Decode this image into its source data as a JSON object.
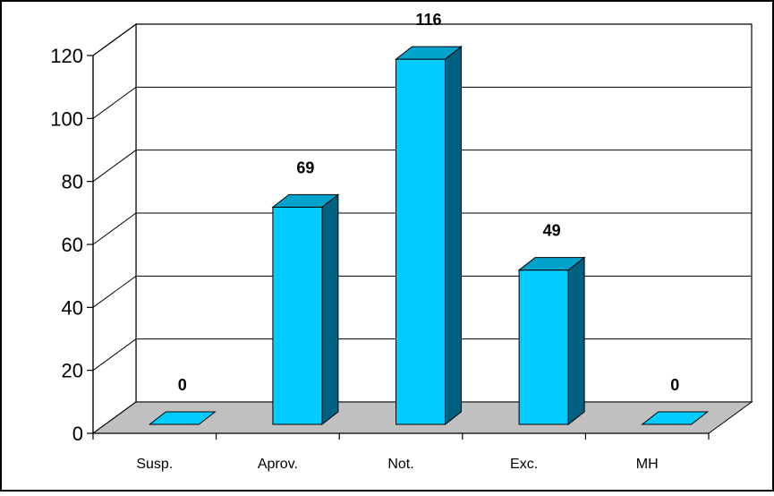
{
  "chart_data": {
    "type": "bar",
    "style": "3d-column",
    "categories": [
      "Susp.",
      "Aprov.",
      "Not.",
      "Exc.",
      "MH"
    ],
    "values": [
      0,
      69,
      116,
      49,
      0
    ],
    "data_labels": [
      "0",
      "69",
      "116",
      "49",
      "0"
    ],
    "title": "",
    "xlabel": "",
    "ylabel": "",
    "ylim": [
      0,
      120
    ],
    "yticks": [
      0,
      20,
      40,
      60,
      80,
      100,
      120
    ],
    "grid": true,
    "legend": false,
    "colors": {
      "bar_front": "#00CCFF",
      "bar_side": "#006080",
      "bar_top": "#00A3CC",
      "floor": "#C0C0C0",
      "grid": "#000000"
    }
  }
}
